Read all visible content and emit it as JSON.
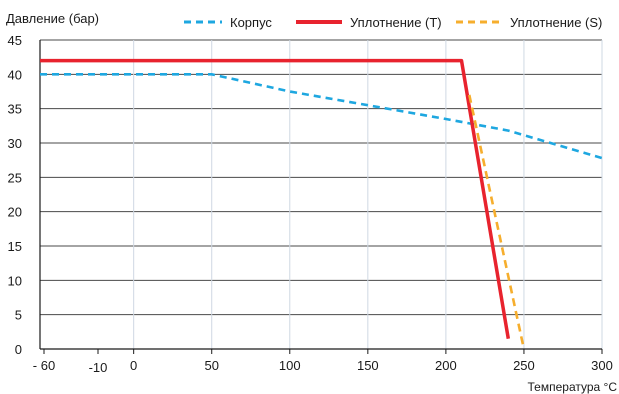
{
  "chart_data": {
    "type": "line",
    "ylabel": "Давление (бар)",
    "xlabel": "Температура °C",
    "xlim": [
      -60,
      300
    ],
    "ylim": [
      0,
      45
    ],
    "x_ticks": [
      -60,
      -10,
      0,
      50,
      100,
      150,
      200,
      250,
      300
    ],
    "x_tick_labels": [
      "- 60",
      "-10",
      "0",
      "50",
      "100",
      "150",
      "200",
      "250",
      "300"
    ],
    "y_ticks": [
      0,
      5,
      10,
      15,
      20,
      25,
      30,
      35,
      40,
      45
    ],
    "y_tick_labels": [
      "0",
      "5",
      "10",
      "15",
      "20",
      "25",
      "30",
      "35",
      "40",
      "45"
    ],
    "grid": true,
    "legend_position": "top",
    "series": [
      {
        "name": "Корпус",
        "color": "#1ea7e0",
        "style": "dashed",
        "points": [
          [
            -60,
            40
          ],
          [
            50,
            40
          ],
          [
            100,
            37.5
          ],
          [
            150,
            35.5
          ],
          [
            200,
            33.5
          ],
          [
            240,
            31.8
          ],
          [
            300,
            27.8
          ]
        ]
      },
      {
        "name": "Уплотнение (T)",
        "color": "#e8232e",
        "style": "solid",
        "points": [
          [
            -60,
            42
          ],
          [
            210,
            42
          ],
          [
            240,
            1.5
          ]
        ]
      },
      {
        "name": "Уплотнение (S)",
        "color": "#f6ae2d",
        "style": "dashed",
        "points": [
          [
            215,
            37
          ],
          [
            250,
            0
          ]
        ]
      }
    ]
  }
}
